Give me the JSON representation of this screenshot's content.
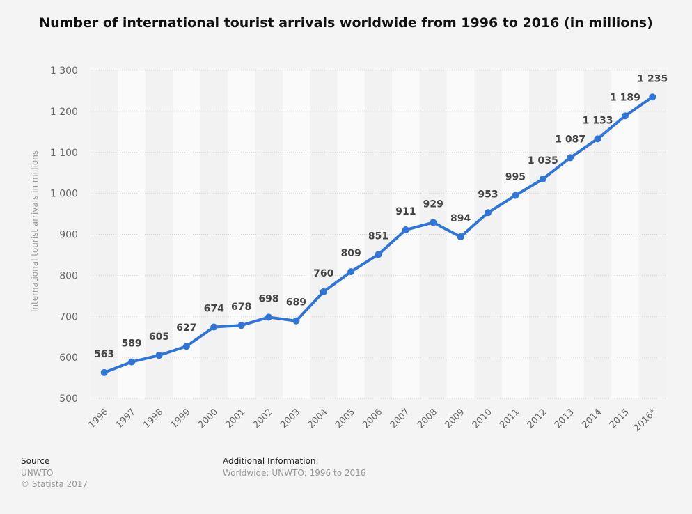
{
  "chart_data": {
    "type": "line",
    "title": "Number of international tourist arrivals worldwide from 1996 to 2016 (in millions)",
    "xlabel": "",
    "ylabel": "International tourist arrivals in millions",
    "categories": [
      "1996",
      "1997",
      "1998",
      "1999",
      "2000",
      "2001",
      "2002",
      "2003",
      "2004",
      "2005",
      "2006",
      "2007",
      "2008",
      "2009",
      "2010",
      "2011",
      "2012",
      "2013",
      "2014",
      "2015",
      "2016*"
    ],
    "values": [
      563,
      589,
      605,
      627,
      674,
      678,
      698,
      689,
      760,
      809,
      851,
      911,
      929,
      894,
      953,
      995,
      1035,
      1087,
      1133,
      1189,
      1235
    ],
    "data_labels": [
      "563",
      "589",
      "605",
      "627",
      "674",
      "678",
      "698",
      "689",
      "760",
      "809",
      "851",
      "911",
      "929",
      "894",
      "953",
      "995",
      "1 035",
      "1 087",
      "1 133",
      "1 189",
      "1 235"
    ],
    "ylim": [
      500,
      1300
    ],
    "yticks": [
      500,
      600,
      700,
      800,
      900,
      1000,
      1100,
      1200,
      1300
    ],
    "ytick_labels": [
      "500",
      "600",
      "700",
      "800",
      "900",
      "1 000",
      "1 100",
      "1 200",
      "1 300"
    ],
    "grid": true,
    "legend": "none",
    "line_color": "#2f75d9"
  },
  "footer": {
    "source_heading": "Source",
    "source_name": "UNWTO",
    "copyright": "© Statista 2017",
    "additional_heading": "Additional Information:",
    "additional_text": "Worldwide; UNWTO; 1996 to 2016"
  }
}
